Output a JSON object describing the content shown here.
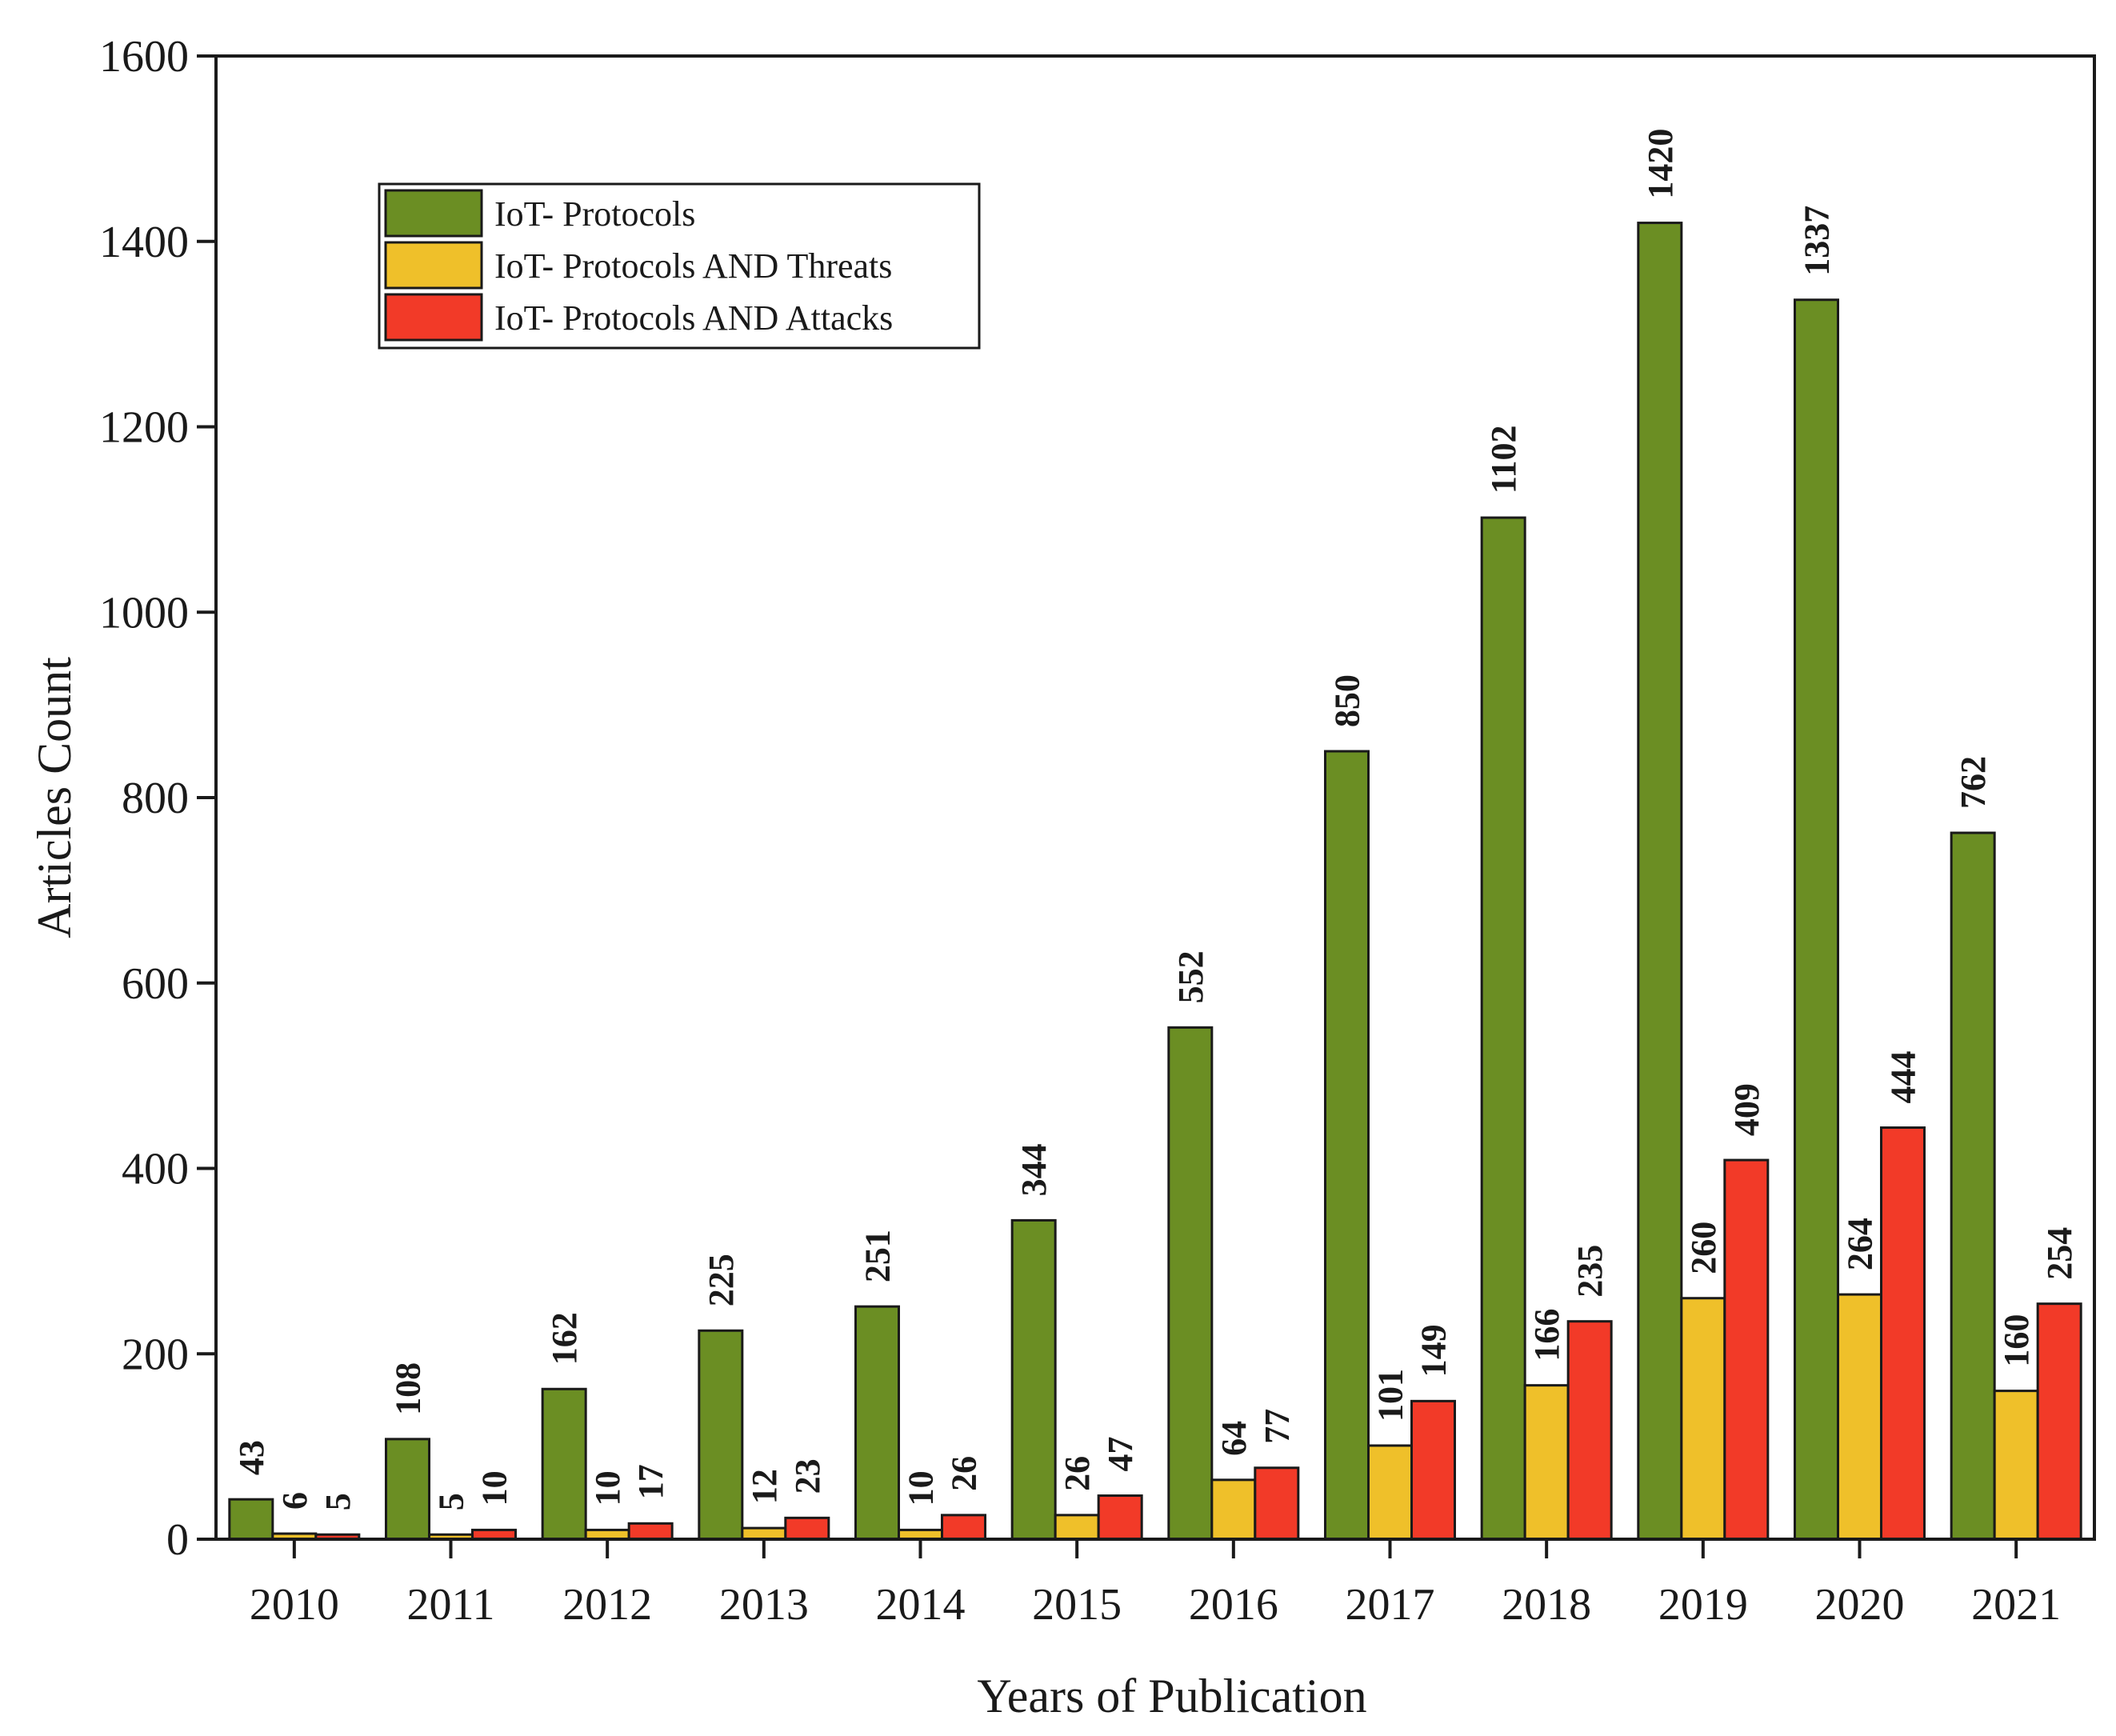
{
  "chart_data": {
    "type": "bar",
    "title": "",
    "xlabel": "Years of Publication",
    "ylabel": "Articles Count",
    "ylim": [
      0,
      1600
    ],
    "yticks": [
      0,
      200,
      400,
      600,
      800,
      1000,
      1200,
      1400,
      1600
    ],
    "categories": [
      "2010",
      "2011",
      "2012",
      "2013",
      "2014",
      "2015",
      "2016",
      "2017",
      "2018",
      "2019",
      "2020",
      "2021"
    ],
    "series": [
      {
        "name": "IoT- Protocols",
        "color": "#6b8e23",
        "values": [
          43,
          108,
          162,
          225,
          251,
          344,
          552,
          850,
          1102,
          1420,
          1337,
          762
        ]
      },
      {
        "name": "IoT- Protocols AND Threats",
        "color": "#efc02a",
        "values": [
          6,
          5,
          10,
          12,
          10,
          26,
          64,
          101,
          166,
          260,
          264,
          160
        ]
      },
      {
        "name": "IoT- Protocols AND Attacks",
        "color": "#f23a28",
        "values": [
          5,
          10,
          17,
          23,
          26,
          47,
          77,
          149,
          235,
          409,
          444,
          254
        ]
      }
    ],
    "legend": "top-left",
    "grid": false
  }
}
